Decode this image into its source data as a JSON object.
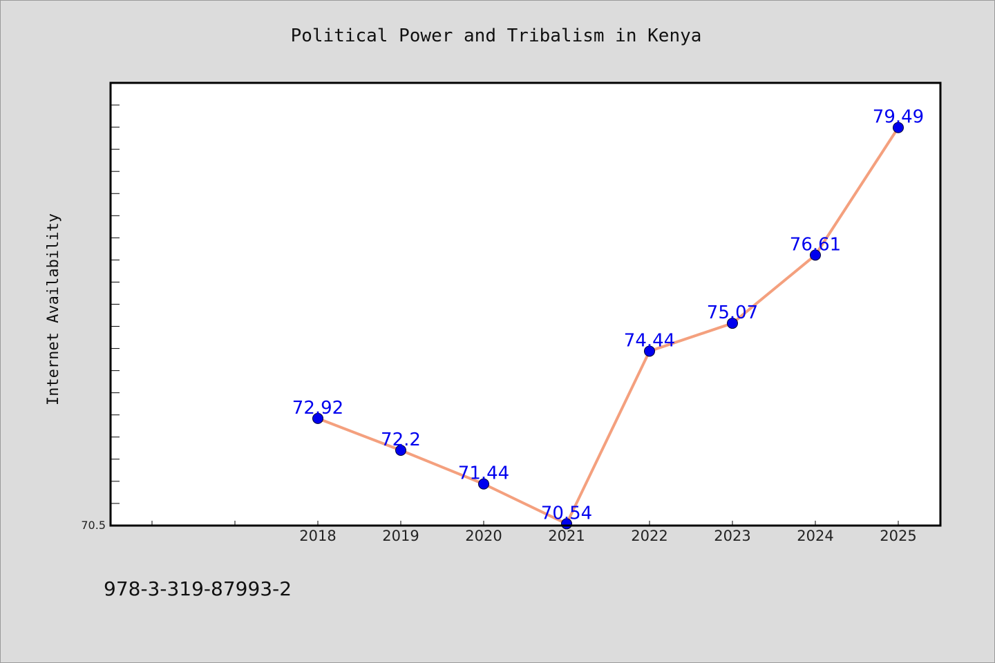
{
  "chart_data": {
    "type": "line",
    "title": "Political Power and Tribalism in Kenya",
    "xlabel": "",
    "ylabel": "Internet Availability",
    "categories": [
      "2018",
      "2019",
      "2020",
      "2021",
      "2022",
      "2023",
      "2024",
      "2025"
    ],
    "series": [
      {
        "values": [
          72.92,
          72.2,
          71.44,
          70.54,
          74.44,
          75.07,
          76.61,
          79.49
        ]
      }
    ],
    "data_labels": [
      "72.92",
      "72.2",
      "71.44",
      "70.54",
      "74.44",
      "75.07",
      "76.61",
      "79.49"
    ],
    "ylim": [
      70.5,
      80.5
    ],
    "ytick_labels": [
      "70.5"
    ],
    "grid": false,
    "line_color": "#f4a07e",
    "marker_color": "#0000ee",
    "label_color": "#0000ee"
  },
  "footer": {
    "code": "978-3-319-87993-2"
  }
}
